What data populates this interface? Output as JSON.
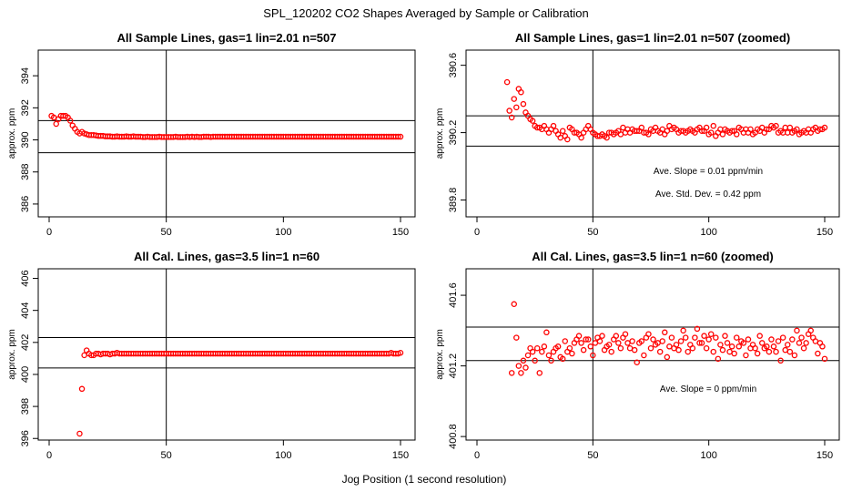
{
  "figure": {
    "title": "SPL_120202  CO2 Shapes Averaged by Sample or Calibration",
    "xlabel": "Jog Position (1 second resolution)"
  },
  "chart_data": [
    {
      "type": "scatter",
      "title": "All Sample Lines, gas=1 lin=2.01 n=507",
      "ylabel": "approx. ppm",
      "xlim": [
        0,
        150
      ],
      "ylim": [
        385.2,
        395.6
      ],
      "xticks": [
        "0",
        "50",
        "100",
        "150"
      ],
      "yticks": [
        "386",
        "388",
        "390",
        "392",
        "394"
      ],
      "marker_color": "#ff0000",
      "hlines": [
        391.2,
        389.2
      ],
      "vline": 50,
      "x": [
        1,
        2,
        3,
        4,
        5,
        6,
        7,
        8,
        9,
        10,
        11,
        12,
        13,
        14,
        15,
        16,
        17,
        18,
        19,
        20,
        21,
        22,
        23,
        24,
        25,
        26,
        27,
        28,
        29,
        30,
        31,
        32,
        33,
        34,
        35,
        36,
        37,
        38,
        39,
        40,
        41,
        42,
        43,
        44,
        45,
        46,
        47,
        48,
        49,
        50,
        51,
        52,
        53,
        54,
        55,
        56,
        57,
        58,
        59,
        60,
        61,
        62,
        63,
        64,
        65,
        66,
        67,
        68,
        69,
        70,
        71,
        72,
        73,
        74,
        75,
        76,
        77,
        78,
        79,
        80,
        81,
        82,
        83,
        84,
        85,
        86,
        87,
        88,
        89,
        90,
        91,
        92,
        93,
        94,
        95,
        96,
        97,
        98,
        99,
        100,
        101,
        102,
        103,
        104,
        105,
        106,
        107,
        108,
        109,
        110,
        111,
        112,
        113,
        114,
        115,
        116,
        117,
        118,
        119,
        120,
        121,
        122,
        123,
        124,
        125,
        126,
        127,
        128,
        129,
        130,
        131,
        132,
        133,
        134,
        135,
        136,
        137,
        138,
        139,
        140,
        141,
        142,
        143,
        144,
        145,
        146,
        147,
        148,
        149,
        150
      ],
      "y": [
        391.5,
        391.4,
        391.0,
        391.3,
        391.5,
        391.5,
        391.5,
        391.4,
        391.2,
        390.9,
        390.7,
        390.5,
        390.4,
        390.5,
        390.4,
        390.35,
        390.3,
        390.3,
        390.3,
        390.28,
        390.25,
        390.25,
        390.25,
        390.22,
        390.22,
        390.22,
        390.2,
        390.2,
        390.22,
        390.2,
        390.2,
        390.2,
        390.22,
        390.2,
        390.2,
        390.22,
        390.2,
        390.2,
        390.2,
        390.18,
        390.18,
        390.2,
        390.18,
        390.18,
        390.18,
        390.18,
        390.2,
        390.18,
        390.18,
        390.18,
        390.18,
        390.18,
        390.18,
        390.2,
        390.18,
        390.18,
        390.18,
        390.18,
        390.2,
        390.18,
        390.2,
        390.18,
        390.2,
        390.18,
        390.18,
        390.2,
        390.2,
        390.2,
        390.18,
        390.2,
        390.2,
        390.2,
        390.2,
        390.2,
        390.2,
        390.2,
        390.2,
        390.2,
        390.2,
        390.2,
        390.2,
        390.2,
        390.2,
        390.2,
        390.2,
        390.2,
        390.2,
        390.2,
        390.2,
        390.2,
        390.2,
        390.2,
        390.2,
        390.2,
        390.2,
        390.2,
        390.2,
        390.2,
        390.2,
        390.2,
        390.2,
        390.2,
        390.2,
        390.2,
        390.2,
        390.2,
        390.2,
        390.2,
        390.2,
        390.2,
        390.2,
        390.2,
        390.2,
        390.2,
        390.2,
        390.2,
        390.2,
        390.2,
        390.2,
        390.2,
        390.2,
        390.2,
        390.2,
        390.2,
        390.2,
        390.2,
        390.2,
        390.2,
        390.2,
        390.2,
        390.2,
        390.2,
        390.2,
        390.2,
        390.2,
        390.2,
        390.2,
        390.2,
        390.2,
        390.2,
        390.2,
        390.2,
        390.2,
        390.2,
        390.2,
        390.2,
        390.2,
        390.2,
        390.2,
        390.2
      ]
    },
    {
      "type": "scatter",
      "title": "All Sample Lines, gas=1 lin=2.01 n=507 (zoomed)",
      "ylabel": "approx. ppm",
      "xlim": [
        0,
        150
      ],
      "ylim": [
        389.7,
        390.69
      ],
      "xticks": [
        "0",
        "50",
        "100",
        "150"
      ],
      "yticks": [
        "389.8",
        "390.2",
        "390.6"
      ],
      "marker_color": "#ff0000",
      "hlines": [
        390.3,
        390.12
      ],
      "vline": 50,
      "annotations": [
        "Ave. Slope =  0.01  ppm/min",
        "Ave. Std. Dev. =  0.42  ppm"
      ],
      "x": [
        13,
        14,
        15,
        16,
        17,
        18,
        19,
        20,
        21,
        22,
        23,
        24,
        25,
        26,
        27,
        28,
        29,
        30,
        31,
        32,
        33,
        34,
        35,
        36,
        37,
        38,
        39,
        40,
        41,
        42,
        43,
        44,
        45,
        46,
        47,
        48,
        49,
        50,
        51,
        52,
        53,
        54,
        55,
        56,
        57,
        58,
        59,
        60,
        61,
        62,
        63,
        64,
        65,
        66,
        67,
        68,
        69,
        70,
        71,
        72,
        73,
        74,
        75,
        76,
        77,
        78,
        79,
        80,
        81,
        82,
        83,
        84,
        85,
        86,
        87,
        88,
        89,
        90,
        91,
        92,
        93,
        94,
        95,
        96,
        97,
        98,
        99,
        100,
        101,
        102,
        103,
        104,
        105,
        106,
        107,
        108,
        109,
        110,
        111,
        112,
        113,
        114,
        115,
        116,
        117,
        118,
        119,
        120,
        121,
        122,
        123,
        124,
        125,
        126,
        127,
        128,
        129,
        130,
        131,
        132,
        133,
        134,
        135,
        136,
        137,
        138,
        139,
        140,
        141,
        142,
        143,
        144,
        145,
        146,
        147,
        148,
        149,
        150
      ],
      "y": [
        390.5,
        390.33,
        390.29,
        390.4,
        390.35,
        390.46,
        390.44,
        390.37,
        390.32,
        390.3,
        390.28,
        390.27,
        390.24,
        390.23,
        390.23,
        390.22,
        390.24,
        390.22,
        390.2,
        390.22,
        390.24,
        390.21,
        390.19,
        390.17,
        390.21,
        390.18,
        390.16,
        390.23,
        390.22,
        390.2,
        390.2,
        390.19,
        390.17,
        390.2,
        390.22,
        390.24,
        390.22,
        390.2,
        390.19,
        390.18,
        390.18,
        390.19,
        390.18,
        390.17,
        390.2,
        390.2,
        390.19,
        390.2,
        390.21,
        390.19,
        390.23,
        390.2,
        390.22,
        390.2,
        390.22,
        390.21,
        390.21,
        390.21,
        390.23,
        390.2,
        390.2,
        390.19,
        390.22,
        390.21,
        390.23,
        390.21,
        390.2,
        390.22,
        390.19,
        390.21,
        390.24,
        390.22,
        390.23,
        390.22,
        390.2,
        390.21,
        390.21,
        390.2,
        390.21,
        390.22,
        390.21,
        390.2,
        390.22,
        390.23,
        390.21,
        390.21,
        390.23,
        390.19,
        390.2,
        390.24,
        390.18,
        390.2,
        390.22,
        390.19,
        390.22,
        390.21,
        390.2,
        390.21,
        390.21,
        390.19,
        390.23,
        390.22,
        390.2,
        390.22,
        390.2,
        390.22,
        390.19,
        390.2,
        390.22,
        390.21,
        390.23,
        390.2,
        390.22,
        390.22,
        390.24,
        390.23,
        390.24,
        390.2,
        390.21,
        390.2,
        390.23,
        390.2,
        390.23,
        390.2,
        390.21,
        390.22,
        390.19,
        390.2,
        390.21,
        390.2,
        390.22,
        390.2,
        390.22,
        390.23,
        390.21,
        390.22,
        390.22,
        390.23
      ]
    },
    {
      "type": "scatter",
      "title": "All Cal. Lines, gas=3.5 lin=1 n=60",
      "ylabel": "approx. ppm",
      "xlim": [
        0,
        150
      ],
      "ylim": [
        395.9,
        406.6
      ],
      "xticks": [
        "0",
        "50",
        "100",
        "150"
      ],
      "yticks": [
        "396",
        "398",
        "400",
        "402",
        "404",
        "406"
      ],
      "marker_color": "#ff0000",
      "hlines": [
        402.3,
        400.4
      ],
      "vline": 50,
      "x": [
        13,
        14,
        15,
        16,
        17,
        18,
        19,
        20,
        21,
        22,
        23,
        24,
        25,
        26,
        27,
        28,
        29,
        30,
        31,
        32,
        33,
        34,
        35,
        36,
        37,
        38,
        39,
        40,
        41,
        42,
        43,
        44,
        45,
        46,
        47,
        48,
        49,
        50,
        51,
        52,
        53,
        54,
        55,
        56,
        57,
        58,
        59,
        60,
        61,
        62,
        63,
        64,
        65,
        66,
        67,
        68,
        69,
        70,
        71,
        72,
        73,
        74,
        75,
        76,
        77,
        78,
        79,
        80,
        81,
        82,
        83,
        84,
        85,
        86,
        87,
        88,
        89,
        90,
        91,
        92,
        93,
        94,
        95,
        96,
        97,
        98,
        99,
        100,
        101,
        102,
        103,
        104,
        105,
        106,
        107,
        108,
        109,
        110,
        111,
        112,
        113,
        114,
        115,
        116,
        117,
        118,
        119,
        120,
        121,
        122,
        123,
        124,
        125,
        126,
        127,
        128,
        129,
        130,
        131,
        132,
        133,
        134,
        135,
        136,
        137,
        138,
        139,
        140,
        141,
        142,
        143,
        144,
        145,
        146,
        147,
        148,
        149,
        150
      ],
      "y": [
        396.3,
        399.1,
        401.2,
        401.5,
        401.3,
        401.2,
        401.2,
        401.3,
        401.3,
        401.25,
        401.3,
        401.3,
        401.3,
        401.25,
        401.3,
        401.3,
        401.35,
        401.3,
        401.3,
        401.3,
        401.3,
        401.3,
        401.3,
        401.3,
        401.3,
        401.3,
        401.3,
        401.3,
        401.3,
        401.3,
        401.3,
        401.3,
        401.3,
        401.3,
        401.3,
        401.3,
        401.3,
        401.3,
        401.3,
        401.3,
        401.3,
        401.3,
        401.3,
        401.3,
        401.3,
        401.3,
        401.3,
        401.3,
        401.3,
        401.3,
        401.3,
        401.3,
        401.3,
        401.3,
        401.3,
        401.3,
        401.3,
        401.3,
        401.3,
        401.3,
        401.3,
        401.3,
        401.3,
        401.3,
        401.3,
        401.3,
        401.3,
        401.3,
        401.3,
        401.3,
        401.3,
        401.3,
        401.3,
        401.3,
        401.3,
        401.3,
        401.3,
        401.3,
        401.3,
        401.3,
        401.3,
        401.3,
        401.3,
        401.3,
        401.3,
        401.3,
        401.3,
        401.3,
        401.3,
        401.3,
        401.3,
        401.3,
        401.3,
        401.3,
        401.3,
        401.3,
        401.3,
        401.3,
        401.3,
        401.3,
        401.3,
        401.3,
        401.3,
        401.3,
        401.3,
        401.3,
        401.3,
        401.3,
        401.3,
        401.3,
        401.3,
        401.3,
        401.3,
        401.3,
        401.3,
        401.3,
        401.3,
        401.3,
        401.3,
        401.3,
        401.3,
        401.3,
        401.3,
        401.3,
        401.3,
        401.3,
        401.3,
        401.3,
        401.3,
        401.3,
        401.3,
        401.3,
        401.3,
        401.35,
        401.3,
        401.3,
        401.3,
        401.35
      ]
    },
    {
      "type": "scatter",
      "title": "All Cal. Lines, gas=3.5 lin=1 n=60 (zoomed)",
      "ylabel": "approx. ppm",
      "xlim": [
        0,
        150
      ],
      "ylim": [
        400.78,
        401.75
      ],
      "xticks": [
        "0",
        "50",
        "100",
        "150"
      ],
      "yticks": [
        "400.8",
        "401.2",
        "401.6"
      ],
      "marker_color": "#ff0000",
      "hlines": [
        401.42,
        401.23
      ],
      "vline": 50,
      "annotations": [
        "Ave. Slope =  0  ppm/min"
      ],
      "x": [
        15,
        16,
        17,
        18,
        19,
        20,
        21,
        22,
        23,
        24,
        25,
        26,
        27,
        28,
        29,
        30,
        31,
        32,
        33,
        34,
        35,
        36,
        37,
        38,
        39,
        40,
        41,
        42,
        43,
        44,
        45,
        46,
        47,
        48,
        49,
        50,
        51,
        52,
        53,
        54,
        55,
        56,
        57,
        58,
        59,
        60,
        61,
        62,
        63,
        64,
        65,
        66,
        67,
        68,
        69,
        70,
        71,
        72,
        73,
        74,
        75,
        76,
        77,
        78,
        79,
        80,
        81,
        82,
        83,
        84,
        85,
        86,
        87,
        88,
        89,
        90,
        91,
        92,
        93,
        94,
        95,
        96,
        97,
        98,
        99,
        100,
        101,
        102,
        103,
        104,
        105,
        106,
        107,
        108,
        109,
        110,
        111,
        112,
        113,
        114,
        115,
        116,
        117,
        118,
        119,
        120,
        121,
        122,
        123,
        124,
        125,
        126,
        127,
        128,
        129,
        130,
        131,
        132,
        133,
        134,
        135,
        136,
        137,
        138,
        139,
        140,
        141,
        142,
        143,
        144,
        145,
        146,
        147,
        148,
        149,
        150
      ],
      "y": [
        401.16,
        401.55,
        401.36,
        401.2,
        401.16,
        401.23,
        401.19,
        401.26,
        401.3,
        401.28,
        401.23,
        401.3,
        401.16,
        401.28,
        401.31,
        401.39,
        401.26,
        401.23,
        401.28,
        401.3,
        401.31,
        401.25,
        401.24,
        401.34,
        401.28,
        401.3,
        401.27,
        401.33,
        401.35,
        401.37,
        401.33,
        401.29,
        401.35,
        401.35,
        401.31,
        401.26,
        401.33,
        401.36,
        401.34,
        401.37,
        401.29,
        401.31,
        401.32,
        401.28,
        401.35,
        401.37,
        401.33,
        401.3,
        401.36,
        401.38,
        401.33,
        401.3,
        401.34,
        401.29,
        401.22,
        401.33,
        401.34,
        401.26,
        401.36,
        401.38,
        401.3,
        401.35,
        401.32,
        401.33,
        401.28,
        401.34,
        401.39,
        401.25,
        401.31,
        401.36,
        401.3,
        401.32,
        401.29,
        401.34,
        401.4,
        401.36,
        401.28,
        401.32,
        401.3,
        401.36,
        401.41,
        401.33,
        401.33,
        401.37,
        401.3,
        401.35,
        401.38,
        401.28,
        401.36,
        401.24,
        401.32,
        401.29,
        401.37,
        401.33,
        401.28,
        401.31,
        401.27,
        401.36,
        401.31,
        401.34,
        401.33,
        401.26,
        401.35,
        401.3,
        401.32,
        401.3,
        401.27,
        401.37,
        401.33,
        401.3,
        401.31,
        401.28,
        401.35,
        401.31,
        401.28,
        401.34,
        401.23,
        401.36,
        401.29,
        401.32,
        401.28,
        401.35,
        401.26,
        401.4,
        401.33,
        401.36,
        401.3,
        401.33,
        401.38,
        401.4,
        401.36,
        401.34,
        401.27,
        401.33,
        401.31,
        401.24
      ]
    }
  ]
}
